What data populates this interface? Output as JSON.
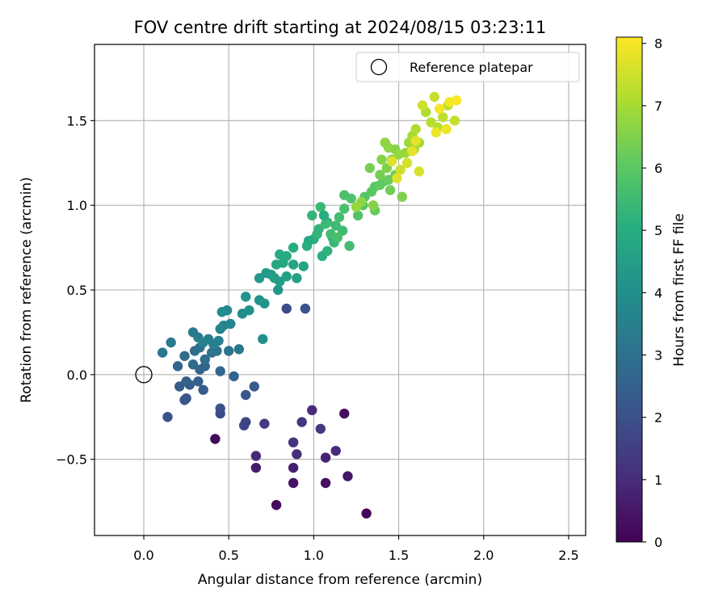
{
  "chart_data": {
    "type": "scatter",
    "title": "FOV centre drift starting at 2024/08/15 03:23:11",
    "xlabel": "Angular distance from reference (arcmin)",
    "ylabel": "Rotation from reference (arcmin)",
    "xlim": [
      -0.29,
      2.6
    ],
    "ylim": [
      -0.95,
      1.95
    ],
    "xticks": [
      0.0,
      0.5,
      1.0,
      1.5,
      2.0,
      2.5
    ],
    "xtick_labels": [
      "0.0",
      "0.5",
      "1.0",
      "1.5",
      "2.0",
      "2.5"
    ],
    "yticks": [
      -0.5,
      0.0,
      0.5,
      1.0,
      1.5
    ],
    "ytick_labels": [
      "−0.5",
      "0.0",
      "0.5",
      "1.0",
      "1.5"
    ],
    "grid": true,
    "legend": {
      "placement": "top-right",
      "label": "Reference platepar"
    },
    "reference_point": [
      0.0,
      0.0
    ],
    "colorbar": {
      "label": "Hours from first FF file",
      "range": [
        0,
        8.1
      ],
      "ticks": [
        0,
        1,
        2,
        3,
        4,
        5,
        6,
        7,
        8
      ],
      "tick_labels": [
        "0",
        "1",
        "2",
        "3",
        "4",
        "5",
        "6",
        "7",
        "8"
      ],
      "colormap": "viridis"
    },
    "points": [
      [
        1.31,
        -0.82,
        0.1
      ],
      [
        0.78,
        -0.77,
        0.2
      ],
      [
        1.07,
        -0.64,
        0.3
      ],
      [
        0.88,
        -0.64,
        0.4
      ],
      [
        1.2,
        -0.6,
        0.5
      ],
      [
        0.66,
        -0.55,
        0.6
      ],
      [
        0.88,
        -0.55,
        0.7
      ],
      [
        1.07,
        -0.49,
        0.8
      ],
      [
        0.66,
        -0.48,
        0.9
      ],
      [
        1.13,
        -0.45,
        1.0
      ],
      [
        0.9,
        -0.47,
        1.1
      ],
      [
        0.88,
        -0.4,
        1.2
      ],
      [
        0.42,
        -0.38,
        0.2
      ],
      [
        1.18,
        -0.23,
        0.3
      ],
      [
        0.99,
        -0.21,
        1.0
      ],
      [
        0.93,
        -0.28,
        1.2
      ],
      [
        1.04,
        -0.32,
        1.3
      ],
      [
        0.71,
        -0.29,
        1.4
      ],
      [
        0.6,
        -0.28,
        1.6
      ],
      [
        0.59,
        -0.3,
        1.7
      ],
      [
        0.45,
        -0.23,
        1.8
      ],
      [
        0.45,
        -0.2,
        2.0
      ],
      [
        0.14,
        -0.25,
        2.0
      ],
      [
        0.25,
        -0.14,
        2.1
      ],
      [
        0.24,
        -0.15,
        2.2
      ],
      [
        0.6,
        -0.12,
        2.2
      ],
      [
        0.65,
        -0.07,
        2.3
      ],
      [
        0.35,
        -0.09,
        2.3
      ],
      [
        0.21,
        -0.07,
        2.4
      ],
      [
        0.27,
        -0.06,
        2.4
      ],
      [
        0.32,
        -0.04,
        2.5
      ],
      [
        0.25,
        -0.04,
        2.5
      ],
      [
        0.53,
        -0.01,
        2.6
      ],
      [
        0.2,
        0.05,
        2.6
      ],
      [
        0.33,
        0.03,
        2.6
      ],
      [
        0.45,
        0.02,
        2.7
      ],
      [
        0.36,
        0.05,
        2.7
      ],
      [
        0.29,
        0.06,
        2.8
      ],
      [
        0.24,
        0.11,
        2.8
      ],
      [
        0.36,
        0.09,
        2.9
      ],
      [
        0.3,
        0.14,
        2.9
      ],
      [
        0.33,
        0.16,
        3.0
      ],
      [
        0.4,
        0.13,
        3.0
      ],
      [
        0.43,
        0.14,
        3.1
      ],
      [
        0.5,
        0.14,
        3.1
      ],
      [
        0.56,
        0.15,
        3.2
      ],
      [
        0.11,
        0.13,
        3.2
      ],
      [
        0.16,
        0.19,
        3.3
      ],
      [
        0.29,
        0.25,
        3.3
      ],
      [
        0.32,
        0.22,
        3.4
      ],
      [
        0.38,
        0.21,
        3.4
      ],
      [
        0.41,
        0.18,
        3.5
      ],
      [
        0.44,
        0.2,
        3.5
      ],
      [
        0.35,
        0.19,
        3.6
      ],
      [
        0.47,
        0.29,
        3.6
      ],
      [
        0.51,
        0.3,
        3.7
      ],
      [
        0.45,
        0.27,
        3.7
      ],
      [
        0.49,
        0.38,
        3.8
      ],
      [
        0.46,
        0.37,
        3.9
      ],
      [
        0.58,
        0.36,
        3.9
      ],
      [
        0.7,
        0.21,
        4.0
      ],
      [
        0.84,
        0.39,
        1.9
      ],
      [
        0.95,
        0.39,
        2.0
      ],
      [
        0.62,
        0.38,
        4.1
      ],
      [
        0.68,
        0.44,
        4.1
      ],
      [
        0.71,
        0.42,
        4.2
      ],
      [
        0.6,
        0.46,
        4.2
      ],
      [
        0.79,
        0.5,
        4.3
      ],
      [
        0.68,
        0.57,
        4.3
      ],
      [
        0.72,
        0.6,
        4.4
      ],
      [
        0.75,
        0.59,
        4.4
      ],
      [
        0.77,
        0.57,
        4.5
      ],
      [
        0.8,
        0.55,
        4.5
      ],
      [
        0.84,
        0.58,
        4.6
      ],
      [
        0.9,
        0.57,
        4.6
      ],
      [
        0.94,
        0.64,
        4.7
      ],
      [
        0.88,
        0.65,
        4.7
      ],
      [
        0.78,
        0.65,
        4.8
      ],
      [
        0.82,
        0.66,
        4.8
      ],
      [
        0.8,
        0.71,
        4.9
      ],
      [
        0.84,
        0.7,
        4.9
      ],
      [
        0.88,
        0.75,
        5.0
      ],
      [
        0.96,
        0.76,
        5.0
      ],
      [
        1.0,
        0.8,
        5.1
      ],
      [
        1.05,
        0.7,
        5.1
      ],
      [
        1.08,
        0.73,
        5.2
      ],
      [
        1.11,
        0.81,
        5.2
      ],
      [
        1.03,
        0.86,
        5.3
      ],
      [
        0.99,
        0.94,
        5.3
      ],
      [
        1.04,
        0.99,
        5.4
      ],
      [
        1.08,
        0.9,
        5.4
      ],
      [
        1.13,
        0.88,
        5.5
      ],
      [
        1.17,
        0.85,
        5.5
      ],
      [
        1.15,
        0.93,
        5.6
      ],
      [
        1.21,
        0.76,
        5.6
      ],
      [
        1.18,
        0.98,
        5.7
      ],
      [
        1.18,
        1.06,
        5.7
      ],
      [
        1.22,
        1.04,
        5.8
      ],
      [
        1.26,
        0.94,
        5.8
      ],
      [
        1.29,
        1.0,
        5.9
      ],
      [
        1.3,
        1.05,
        5.9
      ],
      [
        1.34,
        1.08,
        6.0
      ],
      [
        1.36,
        1.11,
        6.0
      ],
      [
        1.39,
        1.12,
        6.1
      ],
      [
        1.41,
        1.14,
        6.1
      ],
      [
        1.36,
        0.97,
        6.2
      ],
      [
        1.44,
        1.15,
        6.2
      ],
      [
        1.45,
        1.09,
        6.3
      ],
      [
        1.48,
        1.18,
        6.3
      ],
      [
        1.33,
        1.22,
        6.4
      ],
      [
        1.39,
        1.18,
        6.4
      ],
      [
        1.43,
        1.22,
        6.5
      ],
      [
        1.46,
        1.27,
        6.5
      ],
      [
        1.48,
        1.33,
        6.6
      ],
      [
        1.4,
        1.27,
        6.6
      ],
      [
        1.44,
        1.34,
        6.7
      ],
      [
        1.42,
        1.37,
        6.7
      ],
      [
        1.5,
        1.3,
        6.8
      ],
      [
        1.54,
        1.31,
        6.8
      ],
      [
        1.56,
        1.37,
        6.9
      ],
      [
        1.59,
        1.33,
        6.9
      ],
      [
        1.62,
        1.37,
        7.0
      ],
      [
        1.58,
        1.41,
        7.0
      ],
      [
        1.6,
        1.45,
        7.1
      ],
      [
        1.66,
        1.55,
        7.1
      ],
      [
        1.69,
        1.49,
        7.2
      ],
      [
        1.73,
        1.46,
        7.2
      ],
      [
        1.76,
        1.52,
        7.3
      ],
      [
        1.79,
        1.59,
        7.3
      ],
      [
        1.83,
        1.5,
        7.4
      ],
      [
        1.71,
        1.64,
        7.4
      ],
      [
        1.64,
        1.59,
        7.5
      ],
      [
        1.51,
        1.21,
        7.5
      ],
      [
        1.55,
        1.25,
        7.6
      ],
      [
        1.62,
        1.2,
        7.6
      ],
      [
        1.49,
        1.16,
        7.7
      ],
      [
        1.46,
        1.26,
        7.7
      ],
      [
        1.58,
        1.32,
        7.8
      ],
      [
        1.6,
        1.38,
        7.8
      ],
      [
        1.72,
        1.43,
        7.9
      ],
      [
        1.78,
        1.45,
        7.9
      ],
      [
        1.74,
        1.57,
        8.0
      ],
      [
        1.8,
        1.61,
        8.0
      ],
      [
        1.84,
        1.62,
        8.05
      ],
      [
        1.52,
        1.05,
        6.5
      ],
      [
        1.35,
        1.0,
        6.6
      ],
      [
        1.28,
        1.02,
        6.7
      ],
      [
        1.25,
        0.99,
        6.8
      ],
      [
        1.1,
        0.83,
        5.6
      ],
      [
        1.07,
        0.89,
        5.5
      ],
      [
        1.02,
        0.83,
        5.3
      ],
      [
        1.12,
        0.78,
        5.4
      ],
      [
        1.14,
        0.81,
        5.7
      ],
      [
        0.97,
        0.79,
        4.9
      ],
      [
        1.06,
        0.94,
        5.0
      ]
    ]
  }
}
